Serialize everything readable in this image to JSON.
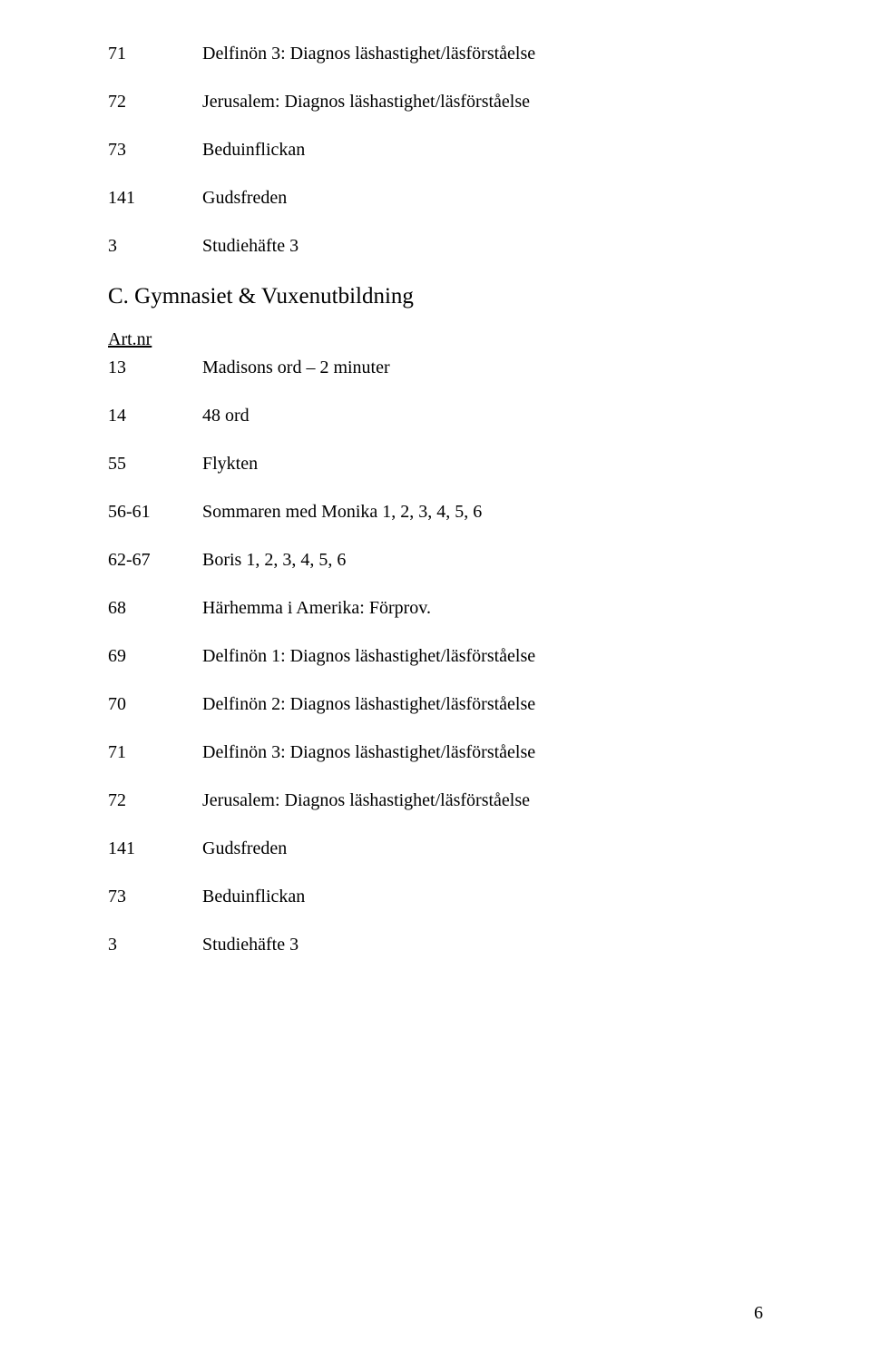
{
  "section1": {
    "rows": [
      {
        "num": "71",
        "desc": "Delfinön 3: Diagnos läshastighet/läsförståelse"
      },
      {
        "num": "72",
        "desc": "Jerusalem: Diagnos läshastighet/läsförståelse"
      },
      {
        "num": "73",
        "desc": "Beduinflickan"
      },
      {
        "num": "141",
        "desc": "Gudsfreden"
      },
      {
        "num": "3",
        "desc": "Studiehäfte 3"
      }
    ]
  },
  "heading": "C. Gymnasiet & Vuxenutbildning",
  "subheading": "Art.nr",
  "section2": {
    "rows": [
      {
        "num": "13",
        "desc": "Madisons ord – 2 minuter"
      },
      {
        "num": "14",
        "desc": "48 ord"
      },
      {
        "num": "55",
        "desc": "Flykten"
      },
      {
        "num": "56-61",
        "desc": "Sommaren med Monika 1, 2, 3, 4, 5, 6"
      },
      {
        "num": "62-67",
        "desc": "Boris 1, 2, 3, 4, 5, 6"
      },
      {
        "num": "68",
        "desc": "Härhemma i Amerika: Förprov."
      },
      {
        "num": "69",
        "desc": "Delfinön 1: Diagnos läshastighet/läsförståelse"
      },
      {
        "num": "70",
        "desc": "Delfinön 2: Diagnos läshastighet/läsförståelse"
      },
      {
        "num": "71",
        "desc": "Delfinön 3: Diagnos läshastighet/läsförståelse"
      },
      {
        "num": "72",
        "desc": "Jerusalem: Diagnos läshastighet/läsförståelse"
      },
      {
        "num": "141",
        "desc": "Gudsfreden"
      },
      {
        "num": "73",
        "desc": "Beduinflickan"
      },
      {
        "num": "3",
        "desc": "Studiehäfte 3"
      }
    ]
  },
  "pageNumber": "6"
}
